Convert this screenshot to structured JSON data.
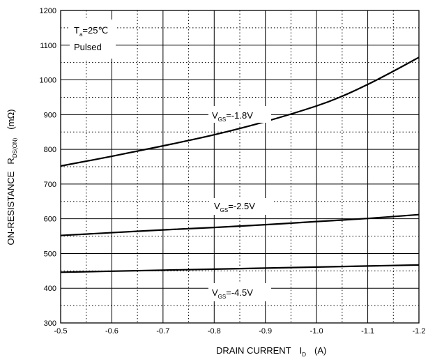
{
  "chart_data": {
    "type": "line",
    "title": "",
    "xlabel": "DRAIN CURRENT",
    "xlabel_symbol": "I",
    "xlabel_sub": "D",
    "xlabel_unit": "(A)",
    "ylabel": "ON-RESISTANCE",
    "ylabel_symbol": "R",
    "ylabel_sub": "DS(ON)",
    "ylabel_unit": "(mΩ)",
    "xlim": [
      -0.5,
      -1.2
    ],
    "ylim": [
      300,
      1200
    ],
    "x_ticks": [
      "-0.5",
      "-0.6",
      "-0.7",
      "-0.8",
      "-0.9",
      "-1.0",
      "-1.1",
      "-1.2"
    ],
    "y_ticks": [
      "300",
      "400",
      "500",
      "600",
      "700",
      "800",
      "900",
      "1000",
      "1100",
      "1200"
    ],
    "x_tick_values": [
      -0.5,
      -0.6,
      -0.7,
      -0.8,
      -0.9,
      -1.0,
      -1.1,
      -1.2
    ],
    "y_tick_values": [
      300,
      400,
      500,
      600,
      700,
      800,
      900,
      1000,
      1100,
      1200
    ],
    "grid": "dotted",
    "conditions": {
      "temp_symbol": "T",
      "temp_sub": "a",
      "temp_value": "=25℃",
      "mode": "Pulsed"
    },
    "series": [
      {
        "label_symbol": "V",
        "label_sub": "GS",
        "label_value": "=-1.8V",
        "x": [
          -0.5,
          -0.6,
          -0.7,
          -0.8,
          -0.9,
          -1.0,
          -1.05,
          -1.1,
          -1.15,
          -1.2
        ],
        "y": [
          752,
          780,
          810,
          842,
          880,
          925,
          953,
          987,
          1025,
          1065
        ]
      },
      {
        "label_symbol": "V",
        "label_sub": "GS",
        "label_value": "=-2.5V",
        "x": [
          -0.5,
          -0.6,
          -0.7,
          -0.8,
          -0.9,
          -1.0,
          -1.1,
          -1.2
        ],
        "y": [
          552,
          560,
          568,
          575,
          583,
          592,
          601,
          612
        ]
      },
      {
        "label_symbol": "V",
        "label_sub": "GS",
        "label_value": "=-4.5V",
        "x": [
          -0.5,
          -0.6,
          -0.7,
          -0.8,
          -0.9,
          -1.0,
          -1.1,
          -1.2
        ],
        "y": [
          446,
          449,
          452,
          455,
          458,
          461,
          464,
          467
        ]
      }
    ]
  }
}
